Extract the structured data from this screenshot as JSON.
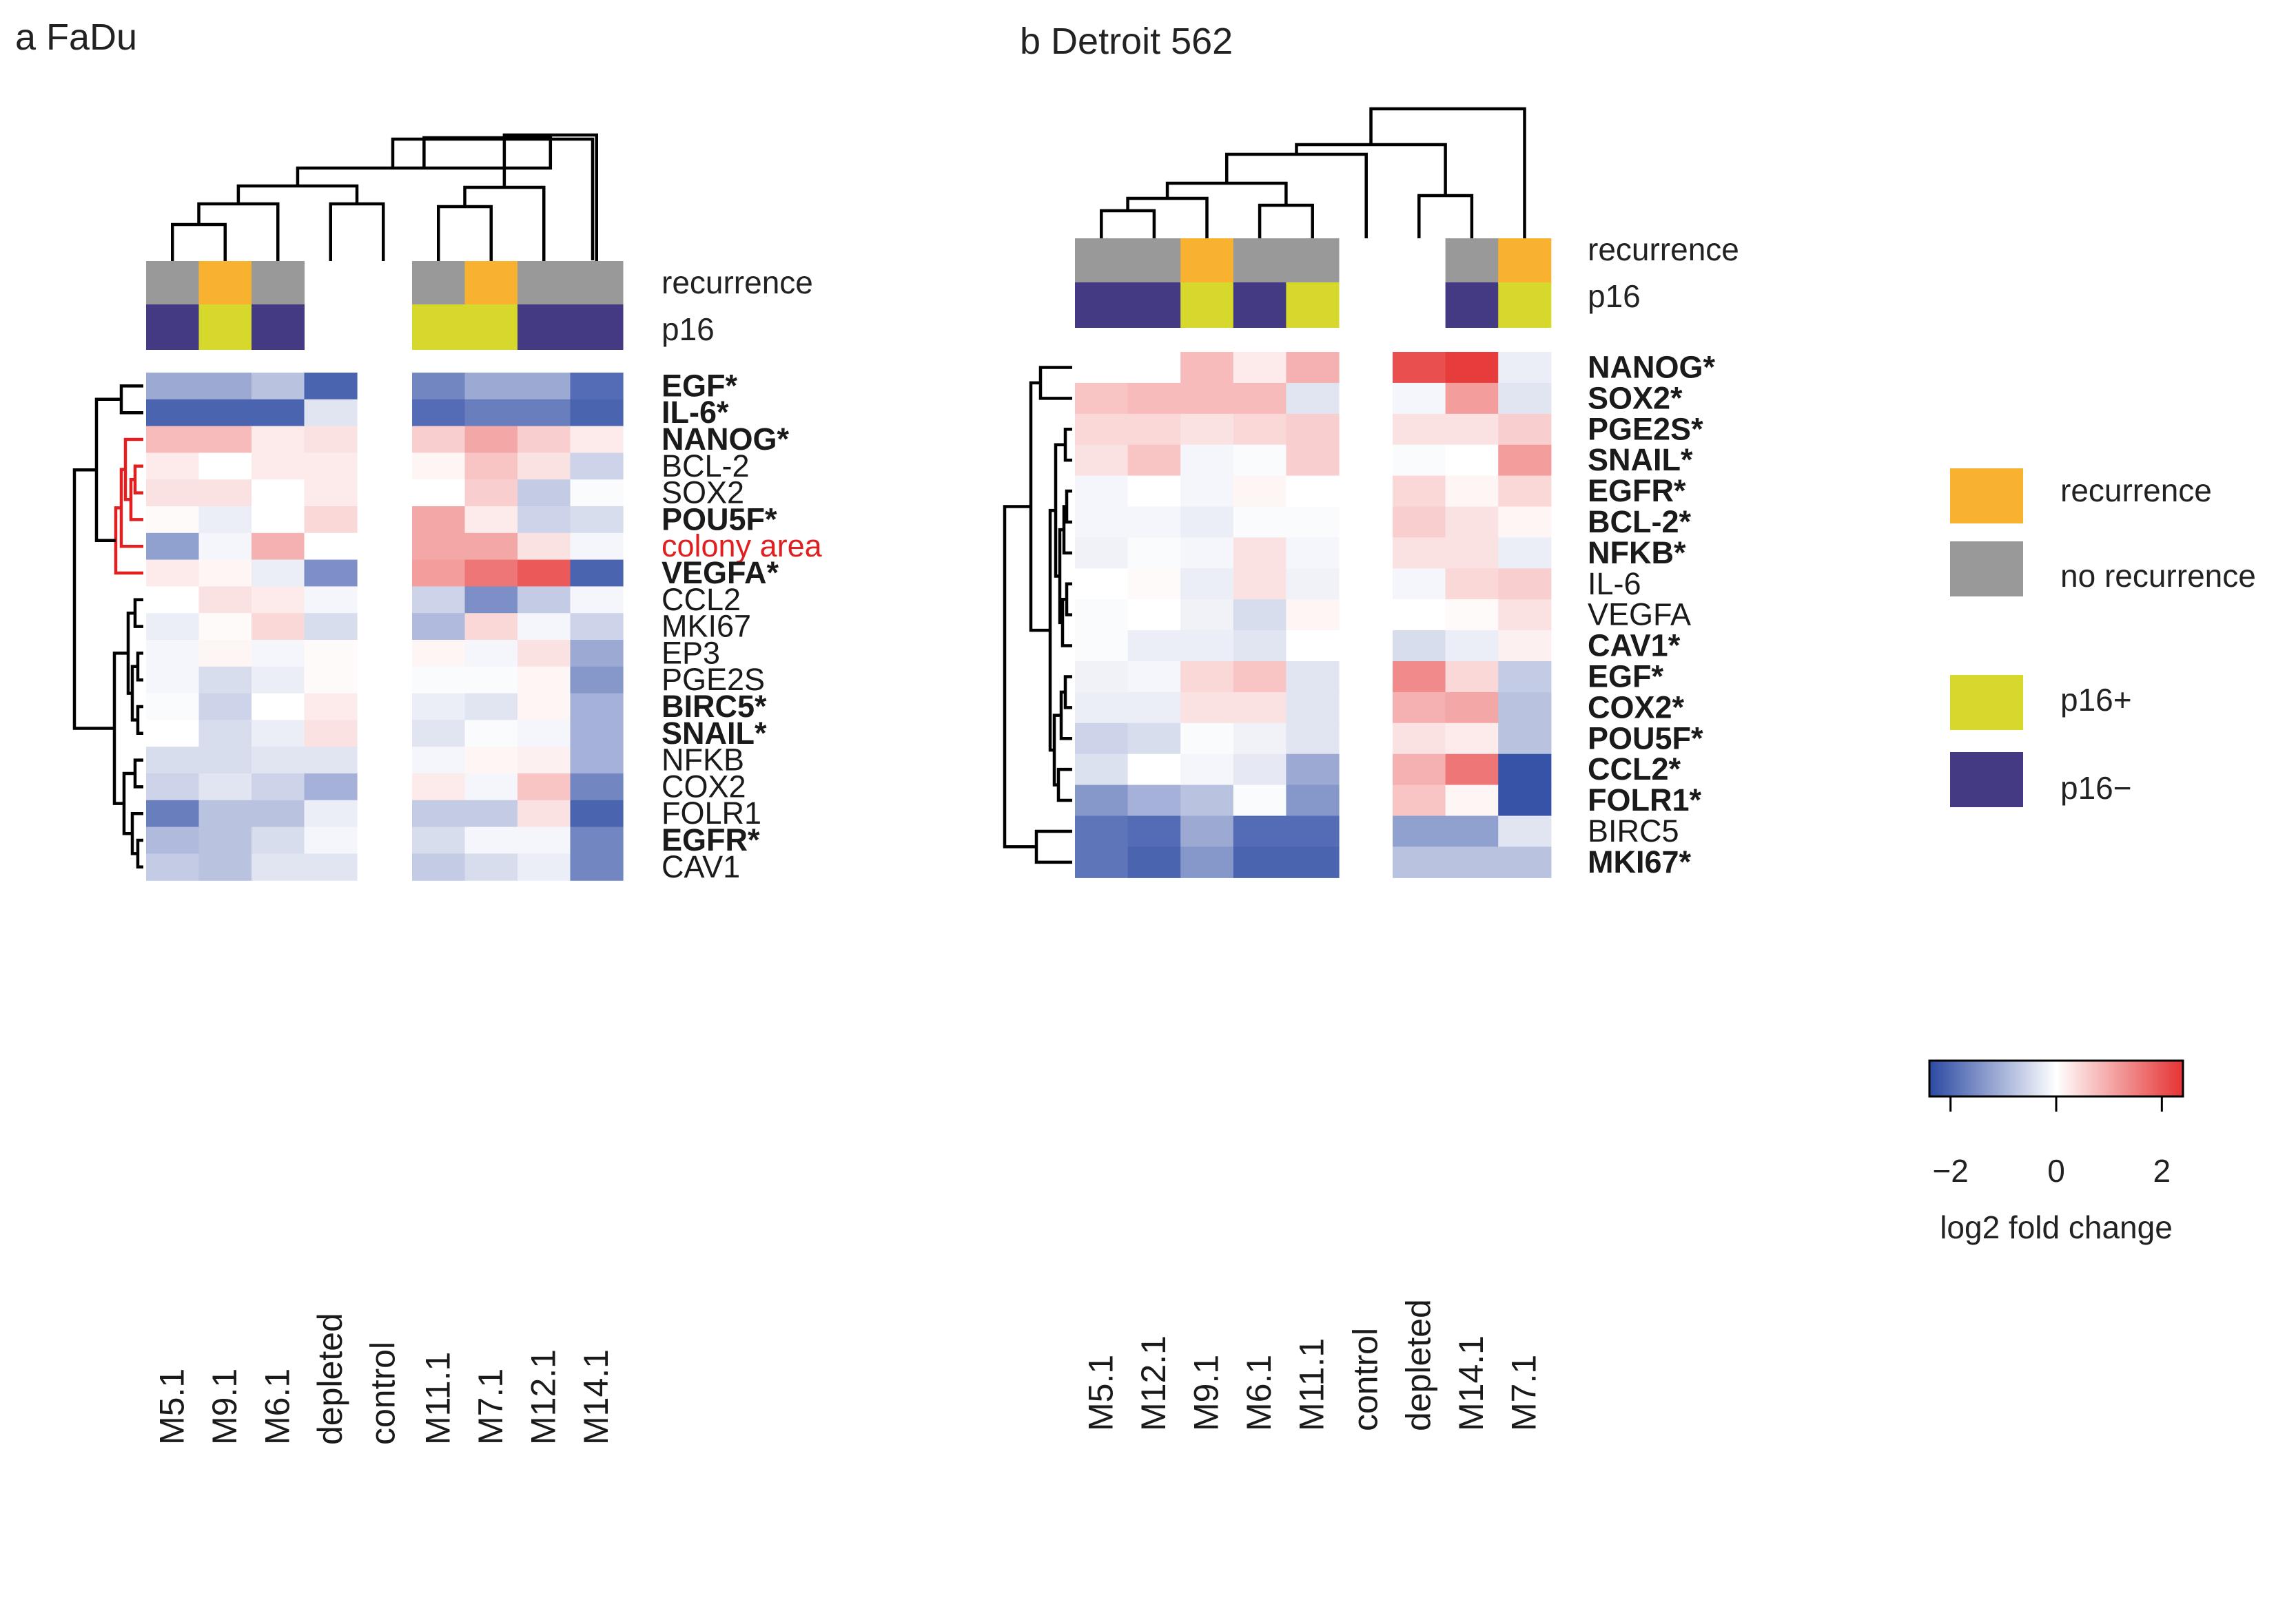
{
  "chart_data": [
    {
      "type": "heatmap",
      "panel_label": "a",
      "title": "a FaDu",
      "columns": [
        "M5.1",
        "M9.1",
        "M6.1",
        "depleted",
        "control",
        "M11.1",
        "M7.1",
        "M12.1",
        "M14.1"
      ],
      "annotation_labels": {
        "recurrence": "recurrence",
        "p16": "p16"
      },
      "recurrence": [
        "no",
        "yes",
        "no",
        null,
        null,
        "no",
        "yes",
        "no",
        "no"
      ],
      "p16": [
        "-",
        "+",
        "-",
        null,
        null,
        "+",
        "+",
        "-",
        "-"
      ],
      "rows": [
        {
          "label": "EGF*",
          "bold": true,
          "red": false,
          "values": [
            -1.0,
            -1.0,
            -0.7,
            -1.8,
            0.0,
            -1.4,
            -1.0,
            -1.0,
            -1.7
          ]
        },
        {
          "label": "IL-6*",
          "bold": true,
          "red": false,
          "values": [
            -1.8,
            -1.8,
            -1.8,
            -0.3,
            0.0,
            -1.7,
            -1.5,
            -1.5,
            -1.8
          ]
        },
        {
          "label": "NANOG*",
          "bold": true,
          "red": false,
          "values": [
            0.7,
            0.7,
            0.2,
            0.3,
            0.0,
            0.5,
            0.9,
            0.5,
            0.2
          ]
        },
        {
          "label": "BCL-2",
          "bold": false,
          "red": false,
          "values": [
            0.2,
            0.0,
            0.2,
            0.2,
            0.0,
            0.1,
            0.6,
            0.3,
            -0.5
          ]
        },
        {
          "label": "SOX2",
          "bold": false,
          "red": false,
          "values": [
            0.3,
            0.3,
            0.0,
            0.2,
            0.0,
            0.0,
            0.5,
            -0.6,
            -0.05
          ]
        },
        {
          "label": "POU5F*",
          "bold": true,
          "red": false,
          "values": [
            0.05,
            -0.2,
            0.0,
            0.4,
            0.0,
            0.9,
            0.2,
            -0.5,
            -0.4
          ]
        },
        {
          "label": "colony area",
          "bold": false,
          "red": true,
          "values": [
            -1.1,
            -0.1,
            0.8,
            0.0,
            0.0,
            0.9,
            0.9,
            0.3,
            -0.1
          ]
        },
        {
          "label": "VEGFA*",
          "bold": true,
          "red": false,
          "values": [
            0.2,
            0.1,
            -0.2,
            -1.3,
            0.0,
            1.0,
            1.4,
            1.7,
            -1.8
          ]
        },
        {
          "label": "CCL2",
          "bold": false,
          "red": false,
          "values": [
            0.0,
            0.3,
            0.2,
            -0.1,
            0.0,
            -0.5,
            -1.3,
            -0.6,
            -0.1
          ]
        },
        {
          "label": "MKI67",
          "bold": false,
          "red": false,
          "values": [
            -0.2,
            0.05,
            0.4,
            -0.4,
            0.0,
            -0.8,
            0.4,
            -0.1,
            -0.5
          ]
        },
        {
          "label": "EP3",
          "bold": false,
          "red": false,
          "values": [
            -0.1,
            0.1,
            -0.1,
            0.05,
            0.0,
            0.1,
            -0.1,
            0.3,
            -1.0
          ]
        },
        {
          "label": "PGE2S",
          "bold": false,
          "red": false,
          "values": [
            -0.1,
            -0.4,
            -0.2,
            0.05,
            0.0,
            -0.05,
            -0.05,
            0.1,
            -1.2
          ]
        },
        {
          "label": "BIRC5*",
          "bold": true,
          "red": false,
          "values": [
            -0.05,
            -0.5,
            0.0,
            0.2,
            0.0,
            -0.2,
            -0.3,
            0.1,
            -0.9
          ]
        },
        {
          "label": "SNAIL*",
          "bold": true,
          "red": false,
          "values": [
            0.0,
            -0.4,
            -0.2,
            0.3,
            0.0,
            -0.3,
            -0.05,
            -0.1,
            -0.9
          ]
        },
        {
          "label": "NFKB",
          "bold": false,
          "red": false,
          "values": [
            -0.4,
            -0.4,
            -0.3,
            -0.3,
            0.0,
            -0.1,
            0.1,
            0.15,
            -0.9
          ]
        },
        {
          "label": "COX2",
          "bold": false,
          "red": false,
          "values": [
            -0.5,
            -0.3,
            -0.5,
            -0.9,
            0.0,
            0.2,
            -0.1,
            0.6,
            -1.4
          ]
        },
        {
          "label": "FOLR1",
          "bold": false,
          "red": false,
          "values": [
            -1.5,
            -0.7,
            -0.7,
            -0.2,
            0.0,
            -0.6,
            -0.6,
            0.3,
            -1.8
          ]
        },
        {
          "label": "EGFR*",
          "bold": true,
          "red": false,
          "values": [
            -0.8,
            -0.7,
            -0.4,
            -0.1,
            0.0,
            -0.4,
            -0.1,
            -0.1,
            -1.4
          ]
        },
        {
          "label": "CAV1",
          "bold": false,
          "red": false,
          "values": [
            -0.6,
            -0.7,
            -0.3,
            -0.3,
            0.0,
            -0.6,
            -0.4,
            -0.2,
            -1.4
          ]
        }
      ]
    },
    {
      "type": "heatmap",
      "panel_label": "b",
      "title": "b Detroit 562",
      "columns": [
        "M5.1",
        "M12.1",
        "M9.1",
        "M6.1",
        "M11.1",
        "control",
        "depleted",
        "M14.1",
        "M7.1"
      ],
      "annotation_labels": {
        "recurrence": "recurrence",
        "p16": "p16"
      },
      "recurrence": [
        "no",
        "no",
        "yes",
        "no",
        "no",
        null,
        null,
        "no",
        "yes"
      ],
      "p16": [
        "-",
        "-",
        "+",
        "-",
        "+",
        null,
        null,
        "-",
        "+"
      ],
      "rows": [
        {
          "label": "NANOG*",
          "bold": true,
          "values": [
            0.0,
            0.0,
            0.7,
            0.2,
            0.8,
            0.0,
            1.8,
            2.0,
            -0.2
          ]
        },
        {
          "label": "SOX2*",
          "bold": true,
          "values": [
            0.6,
            0.7,
            0.7,
            0.7,
            -0.3,
            0.0,
            -0.1,
            1.0,
            -0.3
          ]
        },
        {
          "label": "PGE2S*",
          "bold": true,
          "values": [
            0.4,
            0.4,
            0.3,
            0.4,
            0.5,
            0.0,
            0.3,
            0.3,
            0.5
          ]
        },
        {
          "label": "SNAIL*",
          "bold": true,
          "values": [
            0.3,
            0.6,
            -0.1,
            -0.05,
            0.5,
            0.0,
            -0.05,
            0.0,
            1.0
          ]
        },
        {
          "label": "EGFR*",
          "bold": true,
          "values": [
            -0.1,
            0.0,
            -0.1,
            0.1,
            0.0,
            0.0,
            0.4,
            0.1,
            0.4
          ]
        },
        {
          "label": "BCL-2*",
          "bold": true,
          "values": [
            -0.1,
            -0.1,
            -0.2,
            -0.05,
            -0.05,
            0.0,
            0.5,
            0.3,
            0.1
          ]
        },
        {
          "label": "NFKB*",
          "bold": true,
          "values": [
            -0.15,
            -0.05,
            -0.1,
            0.3,
            -0.1,
            0.0,
            0.3,
            0.3,
            -0.2
          ]
        },
        {
          "label": "IL-6",
          "bold": false,
          "values": [
            0.0,
            0.05,
            -0.2,
            0.3,
            -0.15,
            0.0,
            -0.1,
            0.4,
            0.5
          ]
        },
        {
          "label": "VEGFA",
          "bold": false,
          "values": [
            -0.05,
            0.0,
            -0.15,
            -0.4,
            0.1,
            0.0,
            0.0,
            0.05,
            0.3
          ]
        },
        {
          "label": "CAV1*",
          "bold": true,
          "values": [
            -0.05,
            -0.2,
            -0.2,
            -0.3,
            0.0,
            0.0,
            -0.4,
            -0.2,
            0.15
          ]
        },
        {
          "label": "EGF*",
          "bold": true,
          "values": [
            -0.15,
            -0.1,
            0.4,
            0.6,
            -0.3,
            0.0,
            1.2,
            0.4,
            -0.6
          ]
        },
        {
          "label": "COX2*",
          "bold": true,
          "values": [
            -0.2,
            -0.2,
            0.3,
            0.3,
            -0.3,
            0.0,
            0.8,
            0.9,
            -0.7
          ]
        },
        {
          "label": "POU5F*",
          "bold": true,
          "values": [
            -0.5,
            -0.4,
            -0.05,
            -0.15,
            -0.3,
            0.0,
            0.3,
            0.2,
            -0.7
          ]
        },
        {
          "label": "CCL2*",
          "bold": true,
          "values": [
            -0.35,
            0.0,
            -0.1,
            -0.25,
            -1.0,
            0.0,
            0.8,
            1.4,
            -2.0
          ]
        },
        {
          "label": "FOLR1*",
          "bold": true,
          "values": [
            -1.2,
            -0.9,
            -0.7,
            -0.05,
            -1.2,
            0.0,
            0.6,
            0.1,
            -2.0
          ]
        },
        {
          "label": "BIRC5",
          "bold": false,
          "values": [
            -1.6,
            -1.7,
            -1.0,
            -1.7,
            -1.7,
            0.0,
            -1.1,
            -1.1,
            -0.3
          ]
        },
        {
          "label": "MKI67*",
          "bold": true,
          "values": [
            -1.6,
            -1.8,
            -1.2,
            -1.8,
            -1.8,
            0.0,
            -0.7,
            -0.7,
            -0.7
          ]
        }
      ]
    }
  ],
  "legend": {
    "recurrence_label": "recurrence",
    "no_recurrence_label": "no recurrence",
    "p16_pos_label": "p16+",
    "p16_neg_label": "p16−",
    "scale_ticks": [
      "−2",
      "0",
      "2"
    ],
    "scale_tick_values": [
      -2,
      0,
      2
    ],
    "scale_range": [
      -2.4,
      2.4
    ],
    "scale_title": "log2 fold change"
  },
  "colors": {
    "recurrence": "#f8b230",
    "no_recurrence": "#999999",
    "p16_pos": "#d6d92b",
    "p16_neg": "#443a84",
    "low": "#2c4aa3",
    "mid": "#ffffff",
    "high": "#e63232",
    "dendro_highlight": "#e02020",
    "dendro": "#000000"
  }
}
